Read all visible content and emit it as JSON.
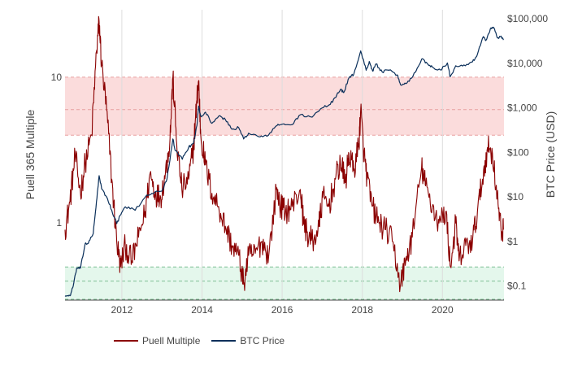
{
  "chart_data": {
    "type": "line",
    "title": "",
    "xlabel": "",
    "ylabel_left": "Puell 365 Multiple",
    "ylabel_right": "BTC Price (USD)",
    "x_ticks": [
      "2012",
      "2014",
      "2016",
      "2018",
      "2020"
    ],
    "y_left_scale": "log",
    "y_left_ticks": [
      {
        "value": 1,
        "label": "1"
      },
      {
        "value": 10,
        "label": "10"
      }
    ],
    "y_right_scale": "log",
    "y_right_ticks": [
      {
        "value": 0.1,
        "label": "$0.1"
      },
      {
        "value": 1,
        "label": "$1"
      },
      {
        "value": 10,
        "label": "$10"
      },
      {
        "value": 100,
        "label": "$100"
      },
      {
        "value": 1000,
        "label": "$1,000"
      },
      {
        "value": 10000,
        "label": "$10,000"
      },
      {
        "value": 100000,
        "label": "$100,000"
      }
    ],
    "xlim": [
      "2010-08-01",
      "2021-07-15"
    ],
    "y_left_range": [
      0.3,
      29
    ],
    "y_right_range": [
      0.05,
      160000
    ],
    "grid": "vertical",
    "legend_position": "bottom-left",
    "bands": [
      {
        "name": "high",
        "from": 4,
        "to": 10,
        "mid": 6,
        "color": "#fbdcdc",
        "line_color": "#e8a0a0"
      },
      {
        "name": "low",
        "from": 0.3,
        "to": 0.5,
        "mid": 0.4,
        "color": "#e4f7ec",
        "line_color": "#7fbf95"
      }
    ],
    "series": [
      {
        "name": "Puell Multiple",
        "axis": "left",
        "color": "#8b0000",
        "points": [
          [
            "2010-08-01",
            0.9
          ],
          [
            "2010-09-15",
            1.4
          ],
          [
            "2010-11-01",
            2.9
          ],
          [
            "2010-12-20",
            1.6
          ],
          [
            "2011-02-01",
            2.6
          ],
          [
            "2011-04-01",
            4.0
          ],
          [
            "2011-05-15",
            15.0
          ],
          [
            "2011-06-08",
            24.0
          ],
          [
            "2011-07-01",
            12.0
          ],
          [
            "2011-08-15",
            6.0
          ],
          [
            "2011-10-01",
            2.0
          ],
          [
            "2011-11-15",
            0.75
          ],
          [
            "2011-12-20",
            0.5
          ],
          [
            "2012-02-01",
            0.7
          ],
          [
            "2012-04-01",
            0.55
          ],
          [
            "2012-06-01",
            0.8
          ],
          [
            "2012-08-01",
            1.2
          ],
          [
            "2012-09-15",
            2.2
          ],
          [
            "2012-11-01",
            1.6
          ],
          [
            "2012-12-20",
            1.5
          ],
          [
            "2013-02-01",
            2.2
          ],
          [
            "2013-03-15",
            3.8
          ],
          [
            "2013-04-10",
            10.0
          ],
          [
            "2013-05-15",
            3.5
          ],
          [
            "2013-07-01",
            1.7
          ],
          [
            "2013-09-01",
            2.0
          ],
          [
            "2013-10-15",
            3.3
          ],
          [
            "2013-11-15",
            7.0
          ],
          [
            "2013-12-01",
            9.5
          ],
          [
            "2013-12-20",
            4.0
          ],
          [
            "2014-02-01",
            2.5
          ],
          [
            "2014-04-01",
            1.6
          ],
          [
            "2014-06-01",
            1.3
          ],
          [
            "2014-08-01",
            0.95
          ],
          [
            "2014-10-01",
            0.7
          ],
          [
            "2014-12-01",
            0.6
          ],
          [
            "2015-01-15",
            0.38
          ],
          [
            "2015-03-01",
            0.6
          ],
          [
            "2015-05-01",
            0.62
          ],
          [
            "2015-07-01",
            0.75
          ],
          [
            "2015-09-01",
            0.6
          ],
          [
            "2015-11-10",
            1.7
          ],
          [
            "2015-12-20",
            1.3
          ],
          [
            "2016-02-01",
            1.2
          ],
          [
            "2016-04-01",
            1.3
          ],
          [
            "2016-06-15",
            1.7
          ],
          [
            "2016-07-15",
            1.0
          ],
          [
            "2016-09-01",
            0.8
          ],
          [
            "2016-10-15",
            0.75
          ],
          [
            "2016-12-01",
            0.95
          ],
          [
            "2017-01-05",
            1.5
          ],
          [
            "2017-03-01",
            1.3
          ],
          [
            "2017-05-01",
            2.0
          ],
          [
            "2017-06-15",
            2.6
          ],
          [
            "2017-08-01",
            1.9
          ],
          [
            "2017-09-01",
            3.0
          ],
          [
            "2017-10-15",
            2.3
          ],
          [
            "2017-12-01",
            3.5
          ],
          [
            "2017-12-17",
            6.0
          ],
          [
            "2018-01-15",
            3.0
          ],
          [
            "2018-02-15",
            2.0
          ],
          [
            "2018-04-01",
            1.3
          ],
          [
            "2018-06-01",
            1.0
          ],
          [
            "2018-08-01",
            0.9
          ],
          [
            "2018-10-01",
            0.75
          ],
          [
            "2018-12-15",
            0.38
          ],
          [
            "2019-02-01",
            0.55
          ],
          [
            "2019-04-01",
            0.8
          ],
          [
            "2019-06-25",
            2.4
          ],
          [
            "2019-08-01",
            1.8
          ],
          [
            "2019-10-01",
            1.3
          ],
          [
            "2019-12-01",
            1.0
          ],
          [
            "2020-02-01",
            1.2
          ],
          [
            "2020-03-15",
            0.5
          ],
          [
            "2020-05-01",
            1.0
          ],
          [
            "2020-06-01",
            0.55
          ],
          [
            "2020-08-01",
            0.7
          ],
          [
            "2020-10-01",
            0.75
          ],
          [
            "2020-11-15",
            1.2
          ],
          [
            "2021-01-01",
            2.0
          ],
          [
            "2021-02-15",
            3.3
          ],
          [
            "2021-04-01",
            3.0
          ],
          [
            "2021-05-15",
            1.5
          ],
          [
            "2021-06-20",
            0.85
          ],
          [
            "2021-07-10",
            0.9
          ]
        ]
      },
      {
        "name": "BTC Price",
        "axis": "right",
        "color": "#0a2f5a",
        "points": [
          [
            "2010-08-01",
            0.06
          ],
          [
            "2010-09-15",
            0.06
          ],
          [
            "2010-10-15",
            0.1
          ],
          [
            "2010-11-15",
            0.25
          ],
          [
            "2010-12-20",
            0.25
          ],
          [
            "2011-02-01",
            0.9
          ],
          [
            "2011-03-01",
            0.9
          ],
          [
            "2011-04-15",
            1.5
          ],
          [
            "2011-05-15",
            8
          ],
          [
            "2011-06-08",
            30
          ],
          [
            "2011-07-01",
            15
          ],
          [
            "2011-08-15",
            10
          ],
          [
            "2011-10-01",
            5
          ],
          [
            "2011-11-15",
            2.5
          ],
          [
            "2011-12-31",
            4.5
          ],
          [
            "2012-02-01",
            6
          ],
          [
            "2012-05-01",
            5
          ],
          [
            "2012-08-15",
            11
          ],
          [
            "2012-10-01",
            12
          ],
          [
            "2012-12-31",
            13.5
          ],
          [
            "2013-02-15",
            25
          ],
          [
            "2013-04-10",
            200
          ],
          [
            "2013-05-01",
            110
          ],
          [
            "2013-07-05",
            70
          ],
          [
            "2013-09-01",
            130
          ],
          [
            "2013-10-15",
            160
          ],
          [
            "2013-11-15",
            400
          ],
          [
            "2013-12-01",
            1100
          ],
          [
            "2013-12-20",
            650
          ],
          [
            "2014-02-01",
            800
          ],
          [
            "2014-04-01",
            450
          ],
          [
            "2014-06-01",
            650
          ],
          [
            "2014-08-01",
            550
          ],
          [
            "2014-10-01",
            330
          ],
          [
            "2014-12-01",
            360
          ],
          [
            "2015-01-15",
            200
          ],
          [
            "2015-03-01",
            270
          ],
          [
            "2015-06-01",
            225
          ],
          [
            "2015-08-15",
            230
          ],
          [
            "2015-11-05",
            390
          ],
          [
            "2016-01-01",
            430
          ],
          [
            "2016-04-01",
            420
          ],
          [
            "2016-06-15",
            700
          ],
          [
            "2016-10-01",
            620
          ],
          [
            "2017-01-01",
            1000
          ],
          [
            "2017-03-15",
            1200
          ],
          [
            "2017-05-15",
            2000
          ],
          [
            "2017-06-15",
            2600
          ],
          [
            "2017-07-15",
            2200
          ],
          [
            "2017-09-01",
            4700
          ],
          [
            "2017-10-15",
            5700
          ],
          [
            "2017-12-17",
            19000
          ],
          [
            "2018-02-05",
            7000
          ],
          [
            "2018-03-05",
            11000
          ],
          [
            "2018-04-05",
            6700
          ],
          [
            "2018-05-05",
            9700
          ],
          [
            "2018-07-01",
            6400
          ],
          [
            "2018-09-01",
            7000
          ],
          [
            "2018-11-15",
            5500
          ],
          [
            "2018-12-15",
            3300
          ],
          [
            "2019-02-01",
            3500
          ],
          [
            "2019-04-05",
            5000
          ],
          [
            "2019-06-26",
            12500
          ],
          [
            "2019-08-15",
            10000
          ],
          [
            "2019-10-01",
            8300
          ],
          [
            "2019-12-15",
            7100
          ],
          [
            "2020-02-15",
            10200
          ],
          [
            "2020-03-12",
            5000
          ],
          [
            "2020-05-01",
            8800
          ],
          [
            "2020-07-15",
            9200
          ],
          [
            "2020-10-01",
            10800
          ],
          [
            "2020-11-15",
            16000
          ],
          [
            "2021-01-08",
            40000
          ],
          [
            "2021-02-01",
            33000
          ],
          [
            "2021-03-13",
            60000
          ],
          [
            "2021-04-14",
            63000
          ],
          [
            "2021-05-19",
            37000
          ],
          [
            "2021-06-15",
            40000
          ],
          [
            "2021-07-10",
            33500
          ]
        ]
      }
    ]
  }
}
